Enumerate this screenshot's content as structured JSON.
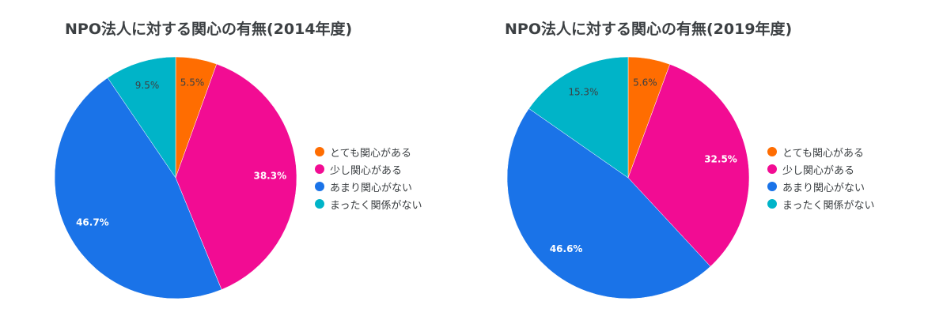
{
  "colors": {
    "とても関心がある": "#ff6d01",
    "少し関心がある": "#f20c93",
    "あまり関心がない": "#1a73e8",
    "まったく関係がない": "#00b4c8"
  },
  "chart_data": [
    {
      "type": "pie",
      "title": "NPO法人に対する関心の有無(2014年度)",
      "categories": [
        "とても関心がある",
        "少し関心がある",
        "あまり関心がない",
        "まったく関係がない"
      ],
      "values": [
        5.5,
        38.3,
        46.7,
        9.5
      ],
      "data_labels": [
        "5.5%",
        "38.3%",
        "46.7%",
        "9.5%"
      ],
      "legend_position": "right"
    },
    {
      "type": "pie",
      "title": "NPO法人に対する関心の有無(2019年度)",
      "categories": [
        "とても関心がある",
        "少し関心がある",
        "あまり関心がない",
        "まったく関係がない"
      ],
      "values": [
        5.6,
        32.5,
        46.6,
        15.3
      ],
      "data_labels": [
        "5.6%",
        "32.5%",
        "46.6%",
        "15.3%"
      ],
      "legend_position": "right"
    }
  ]
}
